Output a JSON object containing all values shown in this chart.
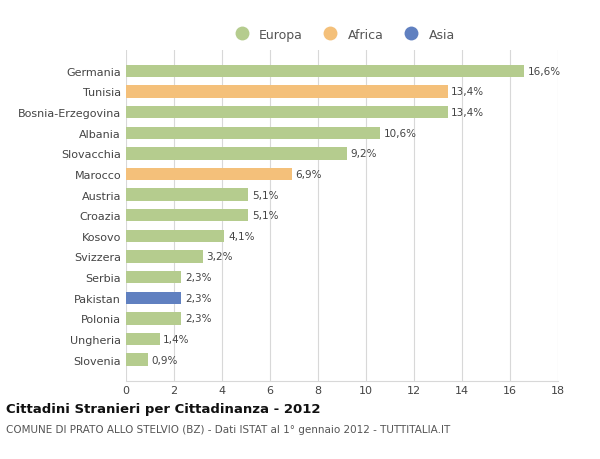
{
  "categories": [
    "Germania",
    "Tunisia",
    "Bosnia-Erzegovina",
    "Albania",
    "Slovacchia",
    "Marocco",
    "Austria",
    "Croazia",
    "Kosovo",
    "Svizzera",
    "Serbia",
    "Pakistan",
    "Polonia",
    "Ungheria",
    "Slovenia"
  ],
  "values": [
    16.6,
    13.4,
    13.4,
    10.6,
    9.2,
    6.9,
    5.1,
    5.1,
    4.1,
    3.2,
    2.3,
    2.3,
    2.3,
    1.4,
    0.9
  ],
  "labels": [
    "16,6%",
    "13,4%",
    "13,4%",
    "10,6%",
    "9,2%",
    "6,9%",
    "5,1%",
    "5,1%",
    "4,1%",
    "3,2%",
    "2,3%",
    "2,3%",
    "2,3%",
    "1,4%",
    "0,9%"
  ],
  "continents": [
    "Europa",
    "Africa",
    "Europa",
    "Europa",
    "Europa",
    "Africa",
    "Europa",
    "Europa",
    "Europa",
    "Europa",
    "Europa",
    "Asia",
    "Europa",
    "Europa",
    "Europa"
  ],
  "colors": {
    "Europa": "#b5cc8e",
    "Africa": "#f4c07a",
    "Asia": "#6080c0"
  },
  "title1": "Cittadini Stranieri per Cittadinanza - 2012",
  "title2": "COMUNE DI PRATO ALLO STELVIO (BZ) - Dati ISTAT al 1° gennaio 2012 - TUTTITALIA.IT",
  "xlim": [
    0,
    18
  ],
  "xticks": [
    0,
    2,
    4,
    6,
    8,
    10,
    12,
    14,
    16,
    18
  ],
  "background_color": "#ffffff",
  "grid_color": "#d8d8d8",
  "bar_height": 0.6
}
